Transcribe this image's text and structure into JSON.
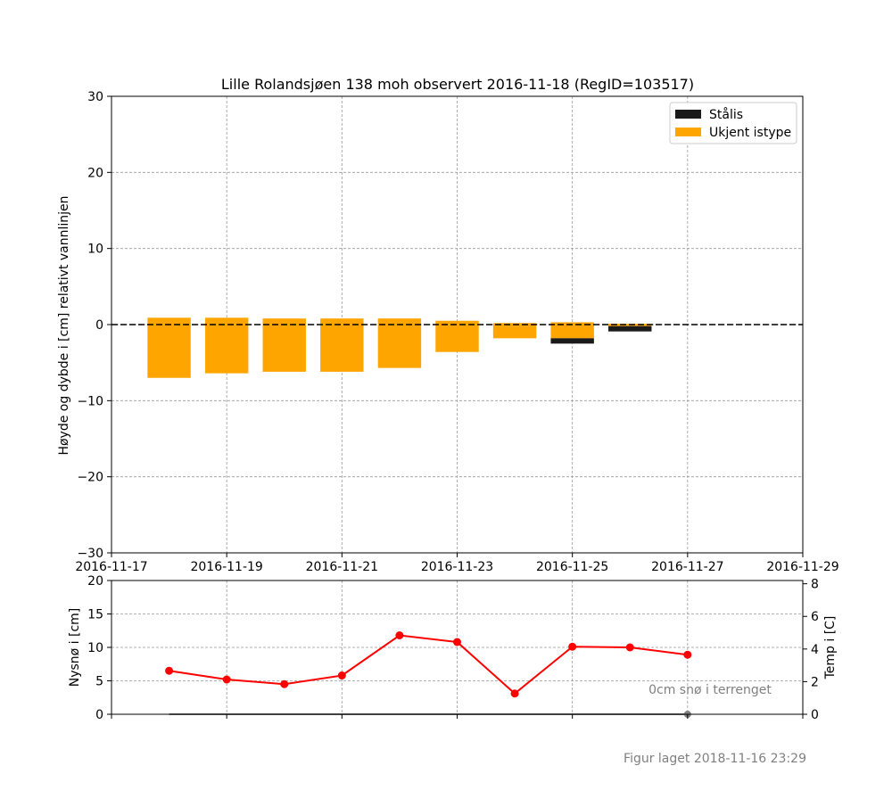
{
  "chart_data": [
    {
      "type": "bar",
      "title": "Lille Rolandsjøen 138 moh observert 2016-11-18 (RegID=103517)",
      "ylabel": "Høyde og dybde i [cm] relativt vannlinjen",
      "xlim": [
        "2016-11-17",
        "2016-11-29"
      ],
      "ylim": [
        -30,
        30
      ],
      "y_ticks": [
        30,
        20,
        10,
        0,
        -10,
        -20,
        -30
      ],
      "y_tick_labels": [
        "30",
        "20",
        "10",
        "0",
        "−10",
        "−20",
        "−30"
      ],
      "x_ticks": [
        "2016-11-17",
        "2016-11-19",
        "2016-11-21",
        "2016-11-23",
        "2016-11-25",
        "2016-11-27",
        "2016-11-29"
      ],
      "grid": true,
      "legend_position": "top-right",
      "zero_line": "dashed",
      "series": [
        {
          "name": "Stålis",
          "color": "#1a1a1a",
          "bars": [
            {
              "date": "2016-11-25",
              "top": -1.8,
              "bottom": -2.5
            },
            {
              "date": "2016-11-26",
              "top": -0.2,
              "bottom": -0.9
            }
          ]
        },
        {
          "name": "Ukjent istype",
          "color": "#ffa500",
          "bars": [
            {
              "date": "2016-11-18",
              "top": 0.9,
              "bottom": -7.0
            },
            {
              "date": "2016-11-19",
              "top": 0.9,
              "bottom": -6.4
            },
            {
              "date": "2016-11-20",
              "top": 0.8,
              "bottom": -6.2
            },
            {
              "date": "2016-11-21",
              "top": 0.8,
              "bottom": -6.2
            },
            {
              "date": "2016-11-22",
              "top": 0.8,
              "bottom": -5.7
            },
            {
              "date": "2016-11-23",
              "top": 0.5,
              "bottom": -3.6
            },
            {
              "date": "2016-11-24",
              "top": 0.2,
              "bottom": -1.8
            },
            {
              "date": "2016-11-25",
              "top": 0.3,
              "bottom": -1.8
            },
            {
              "date": "2016-11-26",
              "top": 0.1,
              "bottom": -0.2
            }
          ]
        }
      ]
    },
    {
      "type": "line",
      "ylabel": "Nysnø i [cm]",
      "ylabel_right": "Temp i [C]",
      "ylim": [
        0,
        20
      ],
      "ylim_right": [
        0,
        8.2
      ],
      "y_ticks": [
        0,
        5,
        10,
        15,
        20
      ],
      "y_tick_labels": [
        "0",
        "5",
        "10",
        "15",
        "20"
      ],
      "y_ticks_right": [
        0,
        2,
        4,
        6,
        8
      ],
      "y_tick_labels_right": [
        "0",
        "2",
        "4",
        "6",
        "8"
      ],
      "grid": true,
      "series": [
        {
          "color": "#ff0000",
          "axis": "left",
          "x": [
            "2016-11-18",
            "2016-11-19",
            "2016-11-20",
            "2016-11-21",
            "2016-11-22",
            "2016-11-23",
            "2016-11-24",
            "2016-11-25",
            "2016-11-26",
            "2016-11-27"
          ],
          "values": [
            6.5,
            5.2,
            4.5,
            5.8,
            11.8,
            10.8,
            3.1,
            10.1,
            10.0,
            8.9
          ]
        }
      ],
      "snow_marker": {
        "date": "2016-11-27",
        "value": 0,
        "color": "#808080"
      },
      "annotation": "0cm snø i terrenget"
    }
  ],
  "footer": {
    "created_label": "Figur laget 2018-11-16 23:29"
  }
}
